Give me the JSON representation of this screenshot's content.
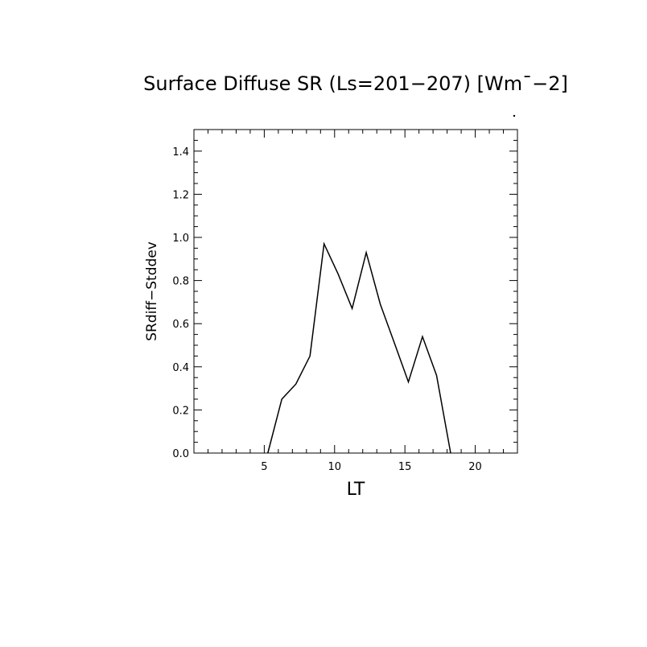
{
  "chart_data": {
    "type": "line",
    "title": "Surface Diffuse SR (Ls=201−207) [Wm¯−2]",
    "xlabel": "LT",
    "ylabel": "SRdiff−Stddev",
    "xlim": [
      0,
      23
    ],
    "ylim": [
      0,
      1.5
    ],
    "xticks": [
      5,
      10,
      15,
      20
    ],
    "xtick_labels": [
      "5",
      "10",
      "15",
      "20"
    ],
    "yticks": [
      0.0,
      0.2,
      0.4,
      0.6,
      0.8,
      1.0,
      1.2,
      1.4
    ],
    "ytick_labels": [
      "0.0",
      "0.2",
      "0.4",
      "0.6",
      "0.8",
      "1.0",
      "1.2",
      "1.4"
    ],
    "grid": false,
    "series": [
      {
        "x": [
          5.25,
          6.25,
          7.25,
          8.25,
          9.25,
          10.25,
          11.25,
          12.25,
          13.25,
          14.25,
          15.25,
          16.25,
          17.25,
          18.25
        ],
        "y": [
          0.0,
          0.25,
          0.32,
          0.45,
          0.97,
          0.83,
          0.67,
          0.93,
          0.69,
          0.51,
          0.33,
          0.54,
          0.36,
          0.0
        ]
      }
    ]
  }
}
